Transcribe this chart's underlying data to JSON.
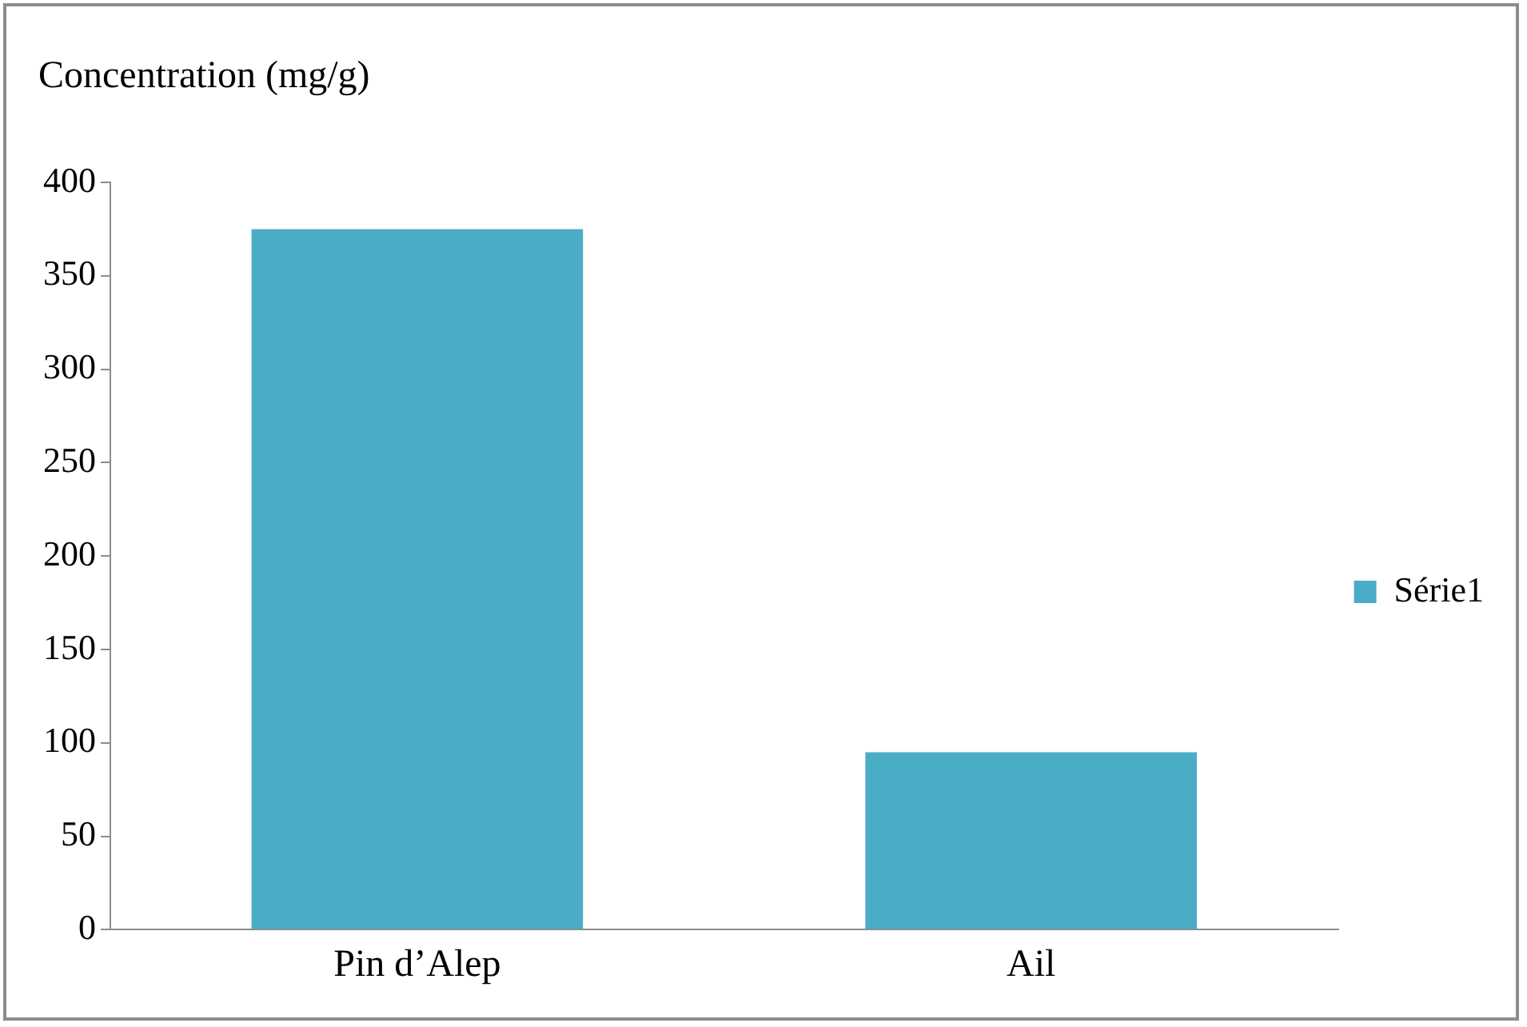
{
  "chart_data": {
    "type": "bar",
    "ylabel": "Concentration (mg/g)",
    "categories": [
      "Pin d’Alep",
      "Ail"
    ],
    "series": [
      {
        "name": "Série1",
        "color": "#4bacc6",
        "values": [
          375,
          95
        ]
      }
    ],
    "ylim": [
      0,
      400
    ],
    "yticks": [
      0,
      50,
      100,
      150,
      200,
      250,
      300,
      350,
      400
    ],
    "grid": false,
    "legend": "right"
  }
}
